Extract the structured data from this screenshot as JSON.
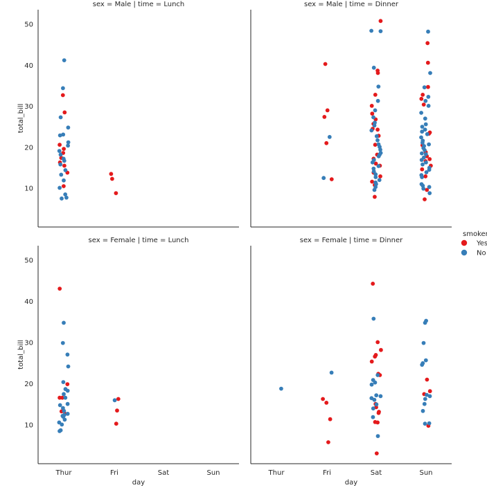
{
  "chart_data": {
    "type": "scatter",
    "kind": "stripplot",
    "x": "day",
    "y": "total_bill",
    "categories": [
      "Thur",
      "Fri",
      "Sat",
      "Sun"
    ],
    "ylim": [
      0,
      54
    ],
    "yticks": [
      10,
      20,
      30,
      40,
      50
    ],
    "xlabel": "day",
    "ylabel": "total_bill",
    "grid": false,
    "legend": {
      "title": "smoker",
      "placement": "right",
      "entries": [
        {
          "label": "Yes",
          "color": "#e41a1c"
        },
        {
          "label": "No",
          "color": "#377eb8"
        }
      ]
    },
    "panels": [
      {
        "title": "sex = Male | time = Lunch",
        "points": [
          [
            "Thur",
            10.5,
            "Yes"
          ],
          [
            "Thur",
            15.5,
            "Yes"
          ],
          [
            "Thur",
            16.3,
            "Yes"
          ],
          [
            "Thur",
            17.4,
            "Yes"
          ],
          [
            "Thur",
            18.6,
            "Yes"
          ],
          [
            "Thur",
            19.6,
            "Yes"
          ],
          [
            "Thur",
            20.6,
            "Yes"
          ],
          [
            "Thur",
            13.8,
            "Yes"
          ],
          [
            "Thur",
            28.5,
            "Yes"
          ],
          [
            "Thur",
            32.7,
            "Yes"
          ],
          [
            "Thur",
            7.5,
            "No"
          ],
          [
            "Thur",
            7.7,
            "No"
          ],
          [
            "Thur",
            8.5,
            "No"
          ],
          [
            "Thur",
            10.1,
            "No"
          ],
          [
            "Thur",
            11.9,
            "No"
          ],
          [
            "Thur",
            13.3,
            "No"
          ],
          [
            "Thur",
            14.4,
            "No"
          ],
          [
            "Thur",
            15.8,
            "No"
          ],
          [
            "Thur",
            16.7,
            "No"
          ],
          [
            "Thur",
            17.2,
            "No"
          ],
          [
            "Thur",
            18.2,
            "No"
          ],
          [
            "Thur",
            19.1,
            "No"
          ],
          [
            "Thur",
            20.4,
            "No"
          ],
          [
            "Thur",
            21.2,
            "No"
          ],
          [
            "Thur",
            22.9,
            "No"
          ],
          [
            "Thur",
            23.1,
            "No"
          ],
          [
            "Thur",
            24.8,
            "No"
          ],
          [
            "Thur",
            27.3,
            "No"
          ],
          [
            "Thur",
            34.4,
            "No"
          ],
          [
            "Thur",
            41.2,
            "No"
          ],
          [
            "Fri",
            8.8,
            "Yes"
          ],
          [
            "Fri",
            12.3,
            "Yes"
          ],
          [
            "Fri",
            13.5,
            "Yes"
          ]
        ]
      },
      {
        "title": "sex = Male | time = Dinner",
        "points": [
          [
            "Fri",
            12.2,
            "Yes"
          ],
          [
            "Fri",
            21.0,
            "Yes"
          ],
          [
            "Fri",
            27.4,
            "Yes"
          ],
          [
            "Fri",
            29.0,
            "Yes"
          ],
          [
            "Fri",
            40.3,
            "Yes"
          ],
          [
            "Fri",
            12.5,
            "No"
          ],
          [
            "Fri",
            22.5,
            "No"
          ],
          [
            "Sat",
            7.9,
            "Yes"
          ],
          [
            "Sat",
            10.8,
            "Yes"
          ],
          [
            "Sat",
            11.6,
            "Yes"
          ],
          [
            "Sat",
            12.9,
            "Yes"
          ],
          [
            "Sat",
            13.8,
            "Yes"
          ],
          [
            "Sat",
            15.5,
            "Yes"
          ],
          [
            "Sat",
            16.0,
            "Yes"
          ],
          [
            "Sat",
            17.2,
            "Yes"
          ],
          [
            "Sat",
            18.2,
            "Yes"
          ],
          [
            "Sat",
            20.6,
            "Yes"
          ],
          [
            "Sat",
            22.8,
            "Yes"
          ],
          [
            "Sat",
            24.3,
            "Yes"
          ],
          [
            "Sat",
            24.5,
            "Yes"
          ],
          [
            "Sat",
            25.7,
            "Yes"
          ],
          [
            "Sat",
            26.8,
            "Yes"
          ],
          [
            "Sat",
            28.2,
            "Yes"
          ],
          [
            "Sat",
            30.1,
            "Yes"
          ],
          [
            "Sat",
            32.8,
            "Yes"
          ],
          [
            "Sat",
            38.1,
            "Yes"
          ],
          [
            "Sat",
            38.7,
            "Yes"
          ],
          [
            "Sat",
            50.8,
            "Yes"
          ],
          [
            "Sat",
            9.6,
            "No"
          ],
          [
            "Sat",
            10.3,
            "No"
          ],
          [
            "Sat",
            11.0,
            "No"
          ],
          [
            "Sat",
            11.4,
            "No"
          ],
          [
            "Sat",
            12.0,
            "No"
          ],
          [
            "Sat",
            12.7,
            "No"
          ],
          [
            "Sat",
            13.4,
            "No"
          ],
          [
            "Sat",
            14.1,
            "No"
          ],
          [
            "Sat",
            14.8,
            "No"
          ],
          [
            "Sat",
            15.4,
            "No"
          ],
          [
            "Sat",
            16.3,
            "No"
          ],
          [
            "Sat",
            16.9,
            "No"
          ],
          [
            "Sat",
            17.8,
            "No"
          ],
          [
            "Sat",
            18.2,
            "No"
          ],
          [
            "Sat",
            18.6,
            "No"
          ],
          [
            "Sat",
            19.4,
            "No"
          ],
          [
            "Sat",
            20.1,
            "No"
          ],
          [
            "Sat",
            20.7,
            "No"
          ],
          [
            "Sat",
            21.7,
            "No"
          ],
          [
            "Sat",
            22.7,
            "No"
          ],
          [
            "Sat",
            24.1,
            "No"
          ],
          [
            "Sat",
            25.3,
            "No"
          ],
          [
            "Sat",
            26.0,
            "No"
          ],
          [
            "Sat",
            27.3,
            "No"
          ],
          [
            "Sat",
            29.0,
            "No"
          ],
          [
            "Sat",
            31.3,
            "No"
          ],
          [
            "Sat",
            34.8,
            "No"
          ],
          [
            "Sat",
            39.4,
            "No"
          ],
          [
            "Sat",
            48.3,
            "No"
          ],
          [
            "Sat",
            48.4,
            "No"
          ],
          [
            "Sun",
            7.3,
            "Yes"
          ],
          [
            "Sun",
            9.6,
            "Yes"
          ],
          [
            "Sun",
            12.9,
            "Yes"
          ],
          [
            "Sun",
            14.6,
            "Yes"
          ],
          [
            "Sun",
            15.5,
            "Yes"
          ],
          [
            "Sun",
            16.6,
            "Yes"
          ],
          [
            "Sun",
            17.1,
            "Yes"
          ],
          [
            "Sun",
            17.8,
            "Yes"
          ],
          [
            "Sun",
            18.8,
            "Yes"
          ],
          [
            "Sun",
            20.5,
            "Yes"
          ],
          [
            "Sun",
            23.3,
            "Yes"
          ],
          [
            "Sun",
            23.6,
            "Yes"
          ],
          [
            "Sun",
            30.4,
            "Yes"
          ],
          [
            "Sun",
            31.8,
            "Yes"
          ],
          [
            "Sun",
            32.8,
            "Yes"
          ],
          [
            "Sun",
            34.7,
            "Yes"
          ],
          [
            "Sun",
            40.6,
            "Yes"
          ],
          [
            "Sun",
            45.4,
            "Yes"
          ],
          [
            "Sun",
            8.8,
            "No"
          ],
          [
            "Sun",
            9.9,
            "No"
          ],
          [
            "Sun",
            10.3,
            "No"
          ],
          [
            "Sun",
            10.6,
            "No"
          ],
          [
            "Sun",
            11.0,
            "No"
          ],
          [
            "Sun",
            12.7,
            "No"
          ],
          [
            "Sun",
            13.2,
            "No"
          ],
          [
            "Sun",
            13.9,
            "No"
          ],
          [
            "Sun",
            14.5,
            "No"
          ],
          [
            "Sun",
            15.0,
            "No"
          ],
          [
            "Sun",
            15.8,
            "No"
          ],
          [
            "Sun",
            16.3,
            "No"
          ],
          [
            "Sun",
            16.9,
            "No"
          ],
          [
            "Sun",
            17.5,
            "No"
          ],
          [
            "Sun",
            18.3,
            "No"
          ],
          [
            "Sun",
            18.5,
            "No"
          ],
          [
            "Sun",
            19.3,
            "No"
          ],
          [
            "Sun",
            19.8,
            "No"
          ],
          [
            "Sun",
            20.3,
            "No"
          ],
          [
            "Sun",
            20.7,
            "No"
          ],
          [
            "Sun",
            21.1,
            "No"
          ],
          [
            "Sun",
            21.6,
            "No"
          ],
          [
            "Sun",
            22.4,
            "No"
          ],
          [
            "Sun",
            23.2,
            "No"
          ],
          [
            "Sun",
            23.8,
            "No"
          ],
          [
            "Sun",
            24.3,
            "No"
          ],
          [
            "Sun",
            25.0,
            "No"
          ],
          [
            "Sun",
            25.6,
            "No"
          ],
          [
            "Sun",
            27.0,
            "No"
          ],
          [
            "Sun",
            28.4,
            "No"
          ],
          [
            "Sun",
            30.1,
            "No"
          ],
          [
            "Sun",
            31.3,
            "No"
          ],
          [
            "Sun",
            32.3,
            "No"
          ],
          [
            "Sun",
            34.6,
            "No"
          ],
          [
            "Sun",
            38.1,
            "No"
          ],
          [
            "Sun",
            48.2,
            "No"
          ]
        ]
      },
      {
        "title": "sex = Female | time = Lunch",
        "points": [
          [
            "Thur",
            12.7,
            "Yes"
          ],
          [
            "Thur",
            13.3,
            "Yes"
          ],
          [
            "Thur",
            16.6,
            "Yes"
          ],
          [
            "Thur",
            16.6,
            "Yes"
          ],
          [
            "Thur",
            19.9,
            "Yes"
          ],
          [
            "Thur",
            43.1,
            "Yes"
          ],
          [
            "Thur",
            8.5,
            "No"
          ],
          [
            "Thur",
            8.7,
            "No"
          ],
          [
            "Thur",
            10.1,
            "No"
          ],
          [
            "Thur",
            10.6,
            "No"
          ],
          [
            "Thur",
            11.3,
            "No"
          ],
          [
            "Thur",
            12.0,
            "No"
          ],
          [
            "Thur",
            12.2,
            "No"
          ],
          [
            "Thur",
            12.4,
            "No"
          ],
          [
            "Thur",
            12.7,
            "No"
          ],
          [
            "Thur",
            13.4,
            "No"
          ],
          [
            "Thur",
            14.1,
            "No"
          ],
          [
            "Thur",
            14.8,
            "No"
          ],
          [
            "Thur",
            15.1,
            "No"
          ],
          [
            "Thur",
            16.6,
            "No"
          ],
          [
            "Thur",
            17.5,
            "No"
          ],
          [
            "Thur",
            18.3,
            "No"
          ],
          [
            "Thur",
            18.7,
            "No"
          ],
          [
            "Thur",
            20.4,
            "No"
          ],
          [
            "Thur",
            24.2,
            "No"
          ],
          [
            "Thur",
            27.1,
            "No"
          ],
          [
            "Thur",
            29.9,
            "No"
          ],
          [
            "Thur",
            34.8,
            "No"
          ],
          [
            "Fri",
            10.3,
            "Yes"
          ],
          [
            "Fri",
            13.5,
            "Yes"
          ],
          [
            "Fri",
            16.3,
            "Yes"
          ],
          [
            "Fri",
            16.0,
            "No"
          ]
        ]
      },
      {
        "title": "sex = Female | time = Dinner",
        "points": [
          [
            "Thur",
            18.8,
            "No"
          ],
          [
            "Fri",
            5.8,
            "Yes"
          ],
          [
            "Fri",
            11.4,
            "Yes"
          ],
          [
            "Fri",
            15.4,
            "Yes"
          ],
          [
            "Fri",
            16.3,
            "Yes"
          ],
          [
            "Fri",
            22.7,
            "No"
          ],
          [
            "Sat",
            3.1,
            "Yes"
          ],
          [
            "Sat",
            10.6,
            "Yes"
          ],
          [
            "Sat",
            10.7,
            "Yes"
          ],
          [
            "Sat",
            12.9,
            "Yes"
          ],
          [
            "Sat",
            13.2,
            "Yes"
          ],
          [
            "Sat",
            14.3,
            "Yes"
          ],
          [
            "Sat",
            15.1,
            "Yes"
          ],
          [
            "Sat",
            22.1,
            "Yes"
          ],
          [
            "Sat",
            22.4,
            "Yes"
          ],
          [
            "Sat",
            25.4,
            "Yes"
          ],
          [
            "Sat",
            26.6,
            "Yes"
          ],
          [
            "Sat",
            27.0,
            "Yes"
          ],
          [
            "Sat",
            28.2,
            "Yes"
          ],
          [
            "Sat",
            30.1,
            "Yes"
          ],
          [
            "Sat",
            44.3,
            "Yes"
          ],
          [
            "Sat",
            7.3,
            "No"
          ],
          [
            "Sat",
            11.9,
            "No"
          ],
          [
            "Sat",
            14.0,
            "No"
          ],
          [
            "Sat",
            15.0,
            "No"
          ],
          [
            "Sat",
            16.1,
            "No"
          ],
          [
            "Sat",
            16.5,
            "No"
          ],
          [
            "Sat",
            17.0,
            "No"
          ],
          [
            "Sat",
            17.2,
            "No"
          ],
          [
            "Sat",
            19.8,
            "No"
          ],
          [
            "Sat",
            20.3,
            "No"
          ],
          [
            "Sat",
            20.9,
            "No"
          ],
          [
            "Sat",
            22.1,
            "No"
          ],
          [
            "Sat",
            35.8,
            "No"
          ],
          [
            "Sun",
            9.8,
            "Yes"
          ],
          [
            "Sun",
            17.5,
            "Yes"
          ],
          [
            "Sun",
            18.2,
            "Yes"
          ],
          [
            "Sun",
            21.0,
            "Yes"
          ],
          [
            "Sun",
            10.3,
            "No"
          ],
          [
            "Sun",
            10.4,
            "No"
          ],
          [
            "Sun",
            13.4,
            "No"
          ],
          [
            "Sun",
            15.1,
            "No"
          ],
          [
            "Sun",
            16.3,
            "No"
          ],
          [
            "Sun",
            17.0,
            "No"
          ],
          [
            "Sun",
            17.3,
            "No"
          ],
          [
            "Sun",
            24.6,
            "No"
          ],
          [
            "Sun",
            25.0,
            "No"
          ],
          [
            "Sun",
            25.7,
            "No"
          ],
          [
            "Sun",
            29.9,
            "No"
          ],
          [
            "Sun",
            34.8,
            "No"
          ],
          [
            "Sun",
            35.3,
            "No"
          ]
        ]
      }
    ]
  }
}
